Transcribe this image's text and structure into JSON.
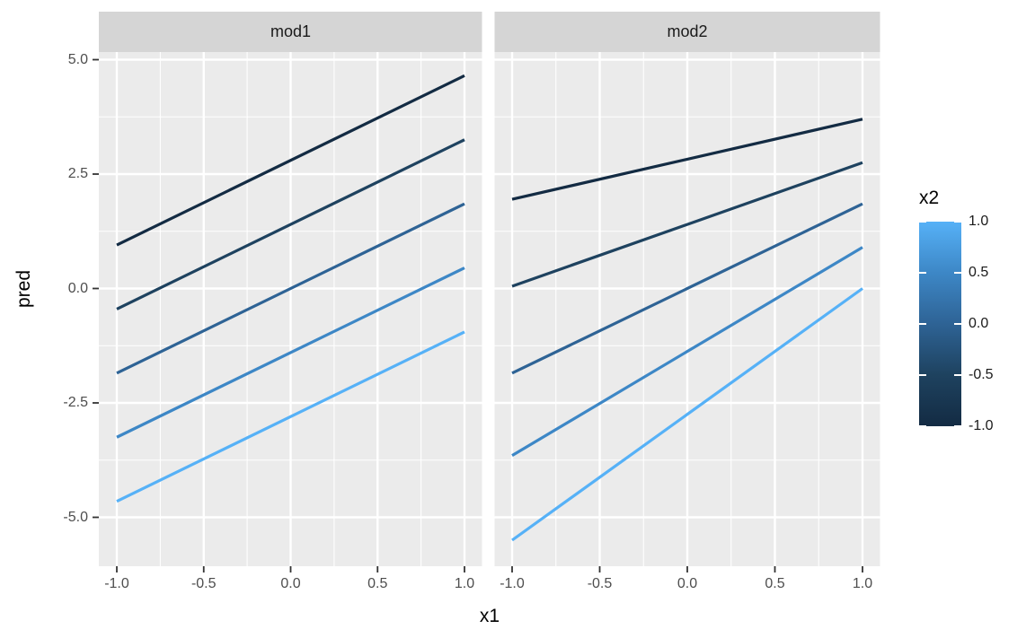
{
  "figure": {
    "background": "#FFFFFF",
    "panel_background": "#EBEBEB",
    "grid_color": "#FFFFFF",
    "strip_background": "#D5D5D5",
    "strip_text_color": "#1A1A1A",
    "axis_text_color": "#4D4D4D",
    "axis_title_color": "#000000",
    "tick_color": "#333333"
  },
  "chart_data": {
    "type": "line",
    "description": "Faceted interaction plot of model predictions: pred vs x1, lines colored by continuous x2, one panel per model",
    "xlabel": "x1",
    "ylabel": "pred",
    "x_ticks": {
      "values": [
        -1.0,
        -0.5,
        0.0,
        0.5,
        1.0
      ],
      "labels": [
        "-1.0",
        "-0.5",
        "0.0",
        "0.5",
        "1.0"
      ]
    },
    "y_ticks": {
      "values": [
        5.0,
        2.5,
        0.0,
        -2.5,
        -5.0
      ],
      "labels": [
        "5.0",
        "2.5",
        "0.0",
        "-2.5",
        "-5.0"
      ]
    },
    "xlim": [
      -1.1,
      1.1
    ],
    "ylim": [
      -6.05,
      5.15
    ],
    "grid": {
      "major": true,
      "minor": true,
      "color": "white on grey panel"
    },
    "facets": [
      {
        "label": "mod1",
        "series": [
          {
            "x2": -1.0,
            "color": "#132B43",
            "x": [
              -1,
              1
            ],
            "pred": [
              0.95,
              4.65
            ]
          },
          {
            "x2": -0.5,
            "color": "#1E425F",
            "x": [
              -1,
              1
            ],
            "pred": [
              -0.45,
              3.25
            ]
          },
          {
            "x2": 0.0,
            "color": "#2E6395",
            "x": [
              -1,
              1
            ],
            "pred": [
              -1.85,
              1.85
            ]
          },
          {
            "x2": 0.5,
            "color": "#3D87C6",
            "x": [
              -1,
              1
            ],
            "pred": [
              -3.25,
              0.45
            ]
          },
          {
            "x2": 1.0,
            "color": "#56B1F7",
            "x": [
              -1,
              1
            ],
            "pred": [
              -4.65,
              -0.95
            ]
          }
        ]
      },
      {
        "label": "mod2",
        "series": [
          {
            "x2": -1.0,
            "color": "#132B43",
            "x": [
              -1,
              1
            ],
            "pred": [
              1.95,
              3.7
            ]
          },
          {
            "x2": -0.5,
            "color": "#1E425F",
            "x": [
              -1,
              1
            ],
            "pred": [
              0.05,
              2.75
            ]
          },
          {
            "x2": 0.0,
            "color": "#2E6395",
            "x": [
              -1,
              1
            ],
            "pred": [
              -1.85,
              1.85
            ]
          },
          {
            "x2": 0.5,
            "color": "#3D87C6",
            "x": [
              -1,
              1
            ],
            "pred": [
              -3.65,
              0.9
            ]
          },
          {
            "x2": 1.0,
            "color": "#56B1F7",
            "x": [
              -1,
              1
            ],
            "pred": [
              -5.5,
              0.0
            ]
          }
        ]
      }
    ],
    "legend": {
      "title": "x2",
      "type": "colorbar",
      "position": "right",
      "ticks": {
        "values": [
          1.0,
          0.5,
          0.0,
          -0.5,
          -1.0
        ],
        "labels": [
          "1.0",
          "0.5",
          "0.0",
          "-0.5",
          "-1.0"
        ]
      },
      "gradient": {
        "high_value": 1.0,
        "high_color": "#56B1F7",
        "mid_colors": [
          "#1E425F",
          "#2E6395",
          "#3D87C6"
        ],
        "low_value": -1.0,
        "low_color": "#132B43"
      }
    }
  }
}
